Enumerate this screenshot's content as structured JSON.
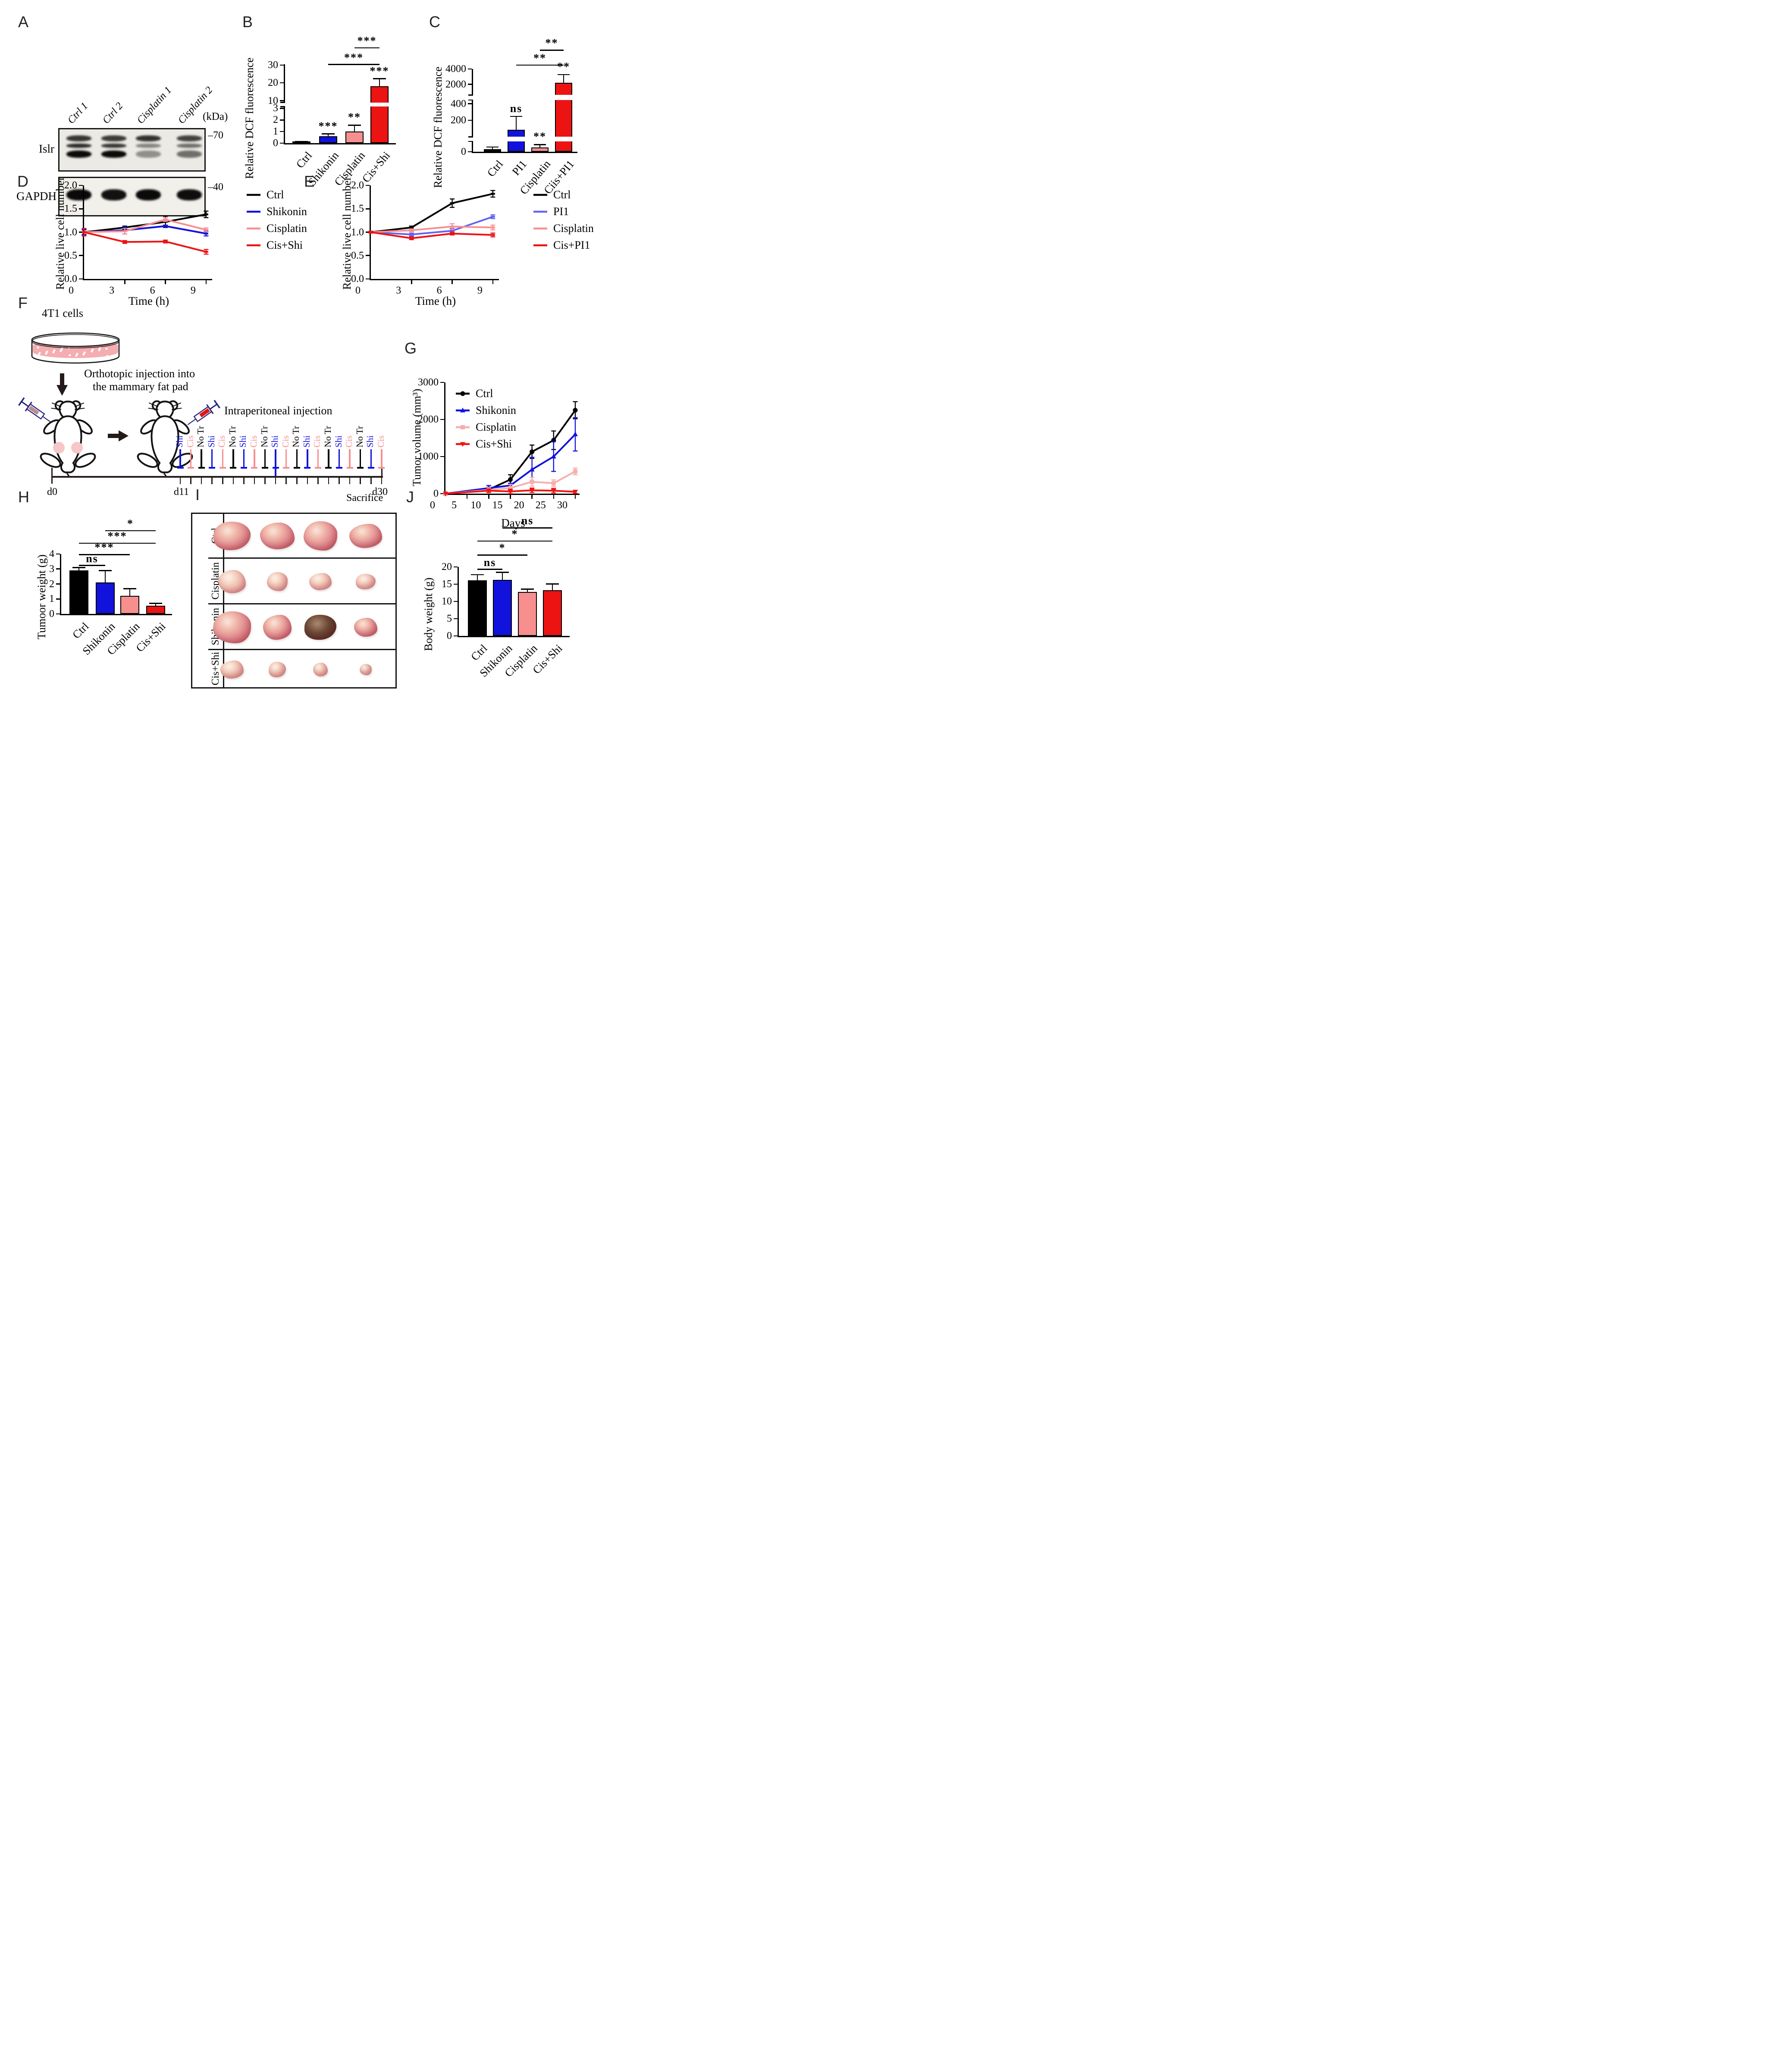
{
  "colors": {
    "black": "#000000",
    "blue": "#1212dd",
    "blue_light": "#6464f2",
    "pink": "#f78f8f",
    "pink_light": "#f6aeae",
    "red": "#ec1313",
    "dish_medium": "#f4adb0",
    "pad_pink": "#f7c6c6",
    "syringe1_fill": "#b98e90",
    "syringe2_fill": "#e41414"
  },
  "panelA": {
    "letter": "A",
    "lanes": [
      "Ctrl 1",
      "Ctrl 2",
      "Cisplatin 1",
      "Cisplatin 2"
    ],
    "kda_label": "(kDa)",
    "marker_labels": [
      "70",
      "40"
    ],
    "rows": [
      "Islr",
      "GAPDH"
    ],
    "islr_band1": [
      0.8,
      0.78,
      0.82,
      0.75
    ],
    "islr_band2": [
      0.85,
      0.8,
      0.45,
      0.55
    ],
    "islr_band3": [
      1.0,
      1.0,
      0.4,
      0.55
    ],
    "gapdh_band": [
      1.0,
      0.97,
      1.0,
      0.98
    ]
  },
  "panelB": {
    "letter": "B"
  },
  "panelC": {
    "letter": "C"
  },
  "panelD": {
    "letter": "D"
  },
  "panelE": {
    "letter": "E"
  },
  "panelF": {
    "letter": "F",
    "cells_label": "4T1 cells",
    "injection_line1": "Orthotopic injection into",
    "injection_line2": "the mammary fat pad",
    "ip_title": "Intraperitoneal injection",
    "schedule": [
      {
        "label": "Shi",
        "color": "blue"
      },
      {
        "label": "Cis",
        "color": "pink"
      },
      {
        "label": "No Tr",
        "color": "black"
      },
      {
        "label": "Shi",
        "color": "blue"
      },
      {
        "label": "Cis",
        "color": "pink"
      },
      {
        "label": "No Tr",
        "color": "black"
      },
      {
        "label": "Shi",
        "color": "blue"
      },
      {
        "label": "Cis",
        "color": "pink"
      },
      {
        "label": "No Tr",
        "color": "black"
      },
      {
        "label": "Shi",
        "color": "blue"
      },
      {
        "label": "Cis",
        "color": "pink"
      },
      {
        "label": "No Tr",
        "color": "black"
      },
      {
        "label": "Shi",
        "color": "blue"
      },
      {
        "label": "Cis",
        "color": "pink"
      },
      {
        "label": "No Tr",
        "color": "black"
      },
      {
        "label": "Shi",
        "color": "blue"
      },
      {
        "label": "Cis",
        "color": "pink"
      },
      {
        "label": "No Tr",
        "color": "black"
      },
      {
        "label": "Shi",
        "color": "blue"
      },
      {
        "label": "Cis",
        "color": "pink"
      }
    ],
    "long_tick_index": 9,
    "timeline": {
      "start_label": "d0",
      "mid_label": "d11",
      "end_label": "d30",
      "sacrifice_label": "Sacrifice"
    }
  },
  "panelG": {
    "letter": "G"
  },
  "panelH": {
    "letter": "H"
  },
  "panelI": {
    "letter": "I",
    "row_labels": [
      "Ctrl",
      "Cisplatin",
      "Shikonin",
      "Cis+Shi"
    ],
    "rows": [
      {
        "label": "Ctrl",
        "palette": "red",
        "dark_index": -1,
        "sizes": [
          [
            86,
            66
          ],
          [
            80,
            62
          ],
          [
            78,
            68
          ],
          [
            76,
            56
          ]
        ]
      },
      {
        "label": "Cisplatin",
        "palette": "pale",
        "dark_index": -1,
        "sizes": [
          [
            64,
            54
          ],
          [
            48,
            44
          ],
          [
            52,
            40
          ],
          [
            46,
            36
          ]
        ]
      },
      {
        "label": "Shikonin",
        "palette": "red",
        "dark_index": 2,
        "sizes": [
          [
            88,
            74
          ],
          [
            66,
            58
          ],
          [
            74,
            58
          ],
          [
            54,
            44
          ]
        ]
      },
      {
        "label": "Cis+Shi",
        "palette": "pale",
        "dark_index": -1,
        "sizes": [
          [
            54,
            42
          ],
          [
            40,
            36
          ],
          [
            34,
            32
          ],
          [
            28,
            26
          ]
        ]
      }
    ]
  },
  "panelJ": {
    "letter": "J"
  },
  "chart_data": [
    {
      "id": "B",
      "type": "bar",
      "ylabel": "Relative DCF fluorescence",
      "categories": [
        "Ctrl",
        "Shikonin",
        "Cisplatin",
        "Cis+Shi"
      ],
      "values": [
        0.05,
        0.6,
        1.0,
        18
      ],
      "errors": [
        0.04,
        0.15,
        0.5,
        4
      ],
      "bar_colors": [
        "black",
        "blue",
        "pink",
        "red"
      ],
      "yticks": [
        0,
        1,
        2,
        3,
        10,
        20,
        30
      ],
      "ymap": [
        [
          0,
          0
        ],
        [
          3,
          0.44
        ],
        [
          10,
          0.538
        ],
        [
          30,
          0.99
        ]
      ],
      "gaps": [
        [
          0.462,
          0.516
        ]
      ],
      "sig": [
        "",
        "***",
        "**",
        "***"
      ],
      "comparisons": [
        {
          "a": 1,
          "b": 3,
          "f": 0.99,
          "label": "***"
        },
        {
          "a": 2,
          "b": 3,
          "f": 1.2,
          "label": "***"
        }
      ],
      "note": "y axis break between 3 and 10"
    },
    {
      "id": "C",
      "type": "bar",
      "ylabel": "Relative DCF fluorescence",
      "categories": [
        "Ctrl",
        "PI1",
        "Cisplatin",
        "Ciis+PI1"
      ],
      "values": [
        15,
        140,
        25,
        2200
      ],
      "errors": [
        10,
        100,
        15,
        1000
      ],
      "bar_colors": [
        "black",
        "blue",
        "pink",
        "red"
      ],
      "yticks": [
        0,
        200,
        400,
        2000,
        4000
      ],
      "ymap": [
        [
          0,
          0
        ],
        [
          50,
          0.1
        ],
        [
          200,
          0.38
        ],
        [
          400,
          0.58
        ],
        [
          2000,
          0.815
        ],
        [
          4000,
          1.0
        ]
      ],
      "gaps": [
        [
          0.125,
          0.18
        ],
        [
          0.625,
          0.685
        ]
      ],
      "sig": [
        "",
        "ns",
        "**",
        "**"
      ],
      "comparisons": [
        {
          "a": 1,
          "b": 3,
          "f": 1.04,
          "label": "**"
        },
        {
          "a": 2,
          "b": 3,
          "f": 1.22,
          "label": "**"
        }
      ],
      "note": "y axis breaks between 0-200 and 400-2000"
    },
    {
      "id": "D",
      "type": "line",
      "ylabel": "Relative live cell number",
      "xlabel": "Time (h)",
      "x": [
        0,
        3,
        6,
        9
      ],
      "xticks": [
        0,
        3,
        6,
        9
      ],
      "xlim": [
        0,
        9.45
      ],
      "ylim": [
        0,
        2
      ],
      "yticks": [
        "0.0",
        "0.5",
        "1.0",
        "1.5",
        "2.0"
      ],
      "series": [
        {
          "name": "Ctrl",
          "color": "black",
          "marker": "dash",
          "values": [
            1.0,
            1.1,
            1.22,
            1.38
          ],
          "errors": [
            0.05,
            0.03,
            0.12,
            0.07
          ]
        },
        {
          "name": "Shikonin",
          "color": "blue",
          "marker": "dash",
          "values": [
            1.0,
            1.04,
            1.13,
            0.97
          ],
          "errors": [
            0.06,
            0.08,
            0.02,
            0.05
          ]
        },
        {
          "name": "Cisplatin",
          "color": "pink",
          "marker": "dash",
          "values": [
            1.0,
            1.02,
            1.27,
            1.05
          ],
          "errors": [
            0.08,
            0.06,
            0.04,
            0.04
          ]
        },
        {
          "name": "Cis+Shi",
          "color": "red",
          "marker": "dash",
          "values": [
            1.0,
            0.79,
            0.8,
            0.58
          ],
          "errors": [
            0.08,
            0.03,
            0.03,
            0.05
          ]
        }
      ],
      "legend_position": "right"
    },
    {
      "id": "E",
      "type": "line",
      "ylabel": "Relative live cell number",
      "xlabel": "Time (h)",
      "x": [
        0,
        3,
        6,
        9
      ],
      "xticks": [
        0,
        3,
        6,
        9
      ],
      "xlim": [
        0,
        9.45
      ],
      "ylim": [
        0,
        2
      ],
      "yticks": [
        "0.0",
        "0.5",
        "1.0",
        "1.5",
        "2.0"
      ],
      "series": [
        {
          "name": "Ctrl",
          "color": "black",
          "marker": "dash",
          "values": [
            1.0,
            1.1,
            1.62,
            1.82
          ],
          "errors": [
            0.02,
            0.03,
            0.09,
            0.07
          ]
        },
        {
          "name": "PI1",
          "color": "blue_light",
          "marker": "dash",
          "values": [
            1.0,
            0.95,
            1.03,
            1.33
          ],
          "errors": [
            0.02,
            0.03,
            0.05,
            0.04
          ]
        },
        {
          "name": "Cisplatin",
          "color": "pink",
          "marker": "dash",
          "values": [
            1.0,
            1.04,
            1.12,
            1.1
          ],
          "errors": [
            0.02,
            0.03,
            0.06,
            0.05
          ]
        },
        {
          "name": "Cis+PI1",
          "color": "red",
          "marker": "dash",
          "values": [
            1.0,
            0.87,
            0.97,
            0.94
          ],
          "errors": [
            0.02,
            0.03,
            0.03,
            0.04
          ]
        }
      ],
      "legend_position": "right"
    },
    {
      "id": "G",
      "type": "line",
      "ylabel": "Tumor volume (mm³)",
      "xlabel": "Days",
      "x": [
        0,
        10,
        15,
        20,
        25,
        30
      ],
      "xticks": [
        0,
        5,
        10,
        15,
        20,
        25,
        30
      ],
      "xlim": [
        0,
        31
      ],
      "ylim": [
        0,
        3000
      ],
      "yticks": [
        0,
        1000,
        2000,
        3000
      ],
      "series": [
        {
          "name": "Ctrl",
          "color": "black",
          "marker": "circle",
          "values": [
            0,
            110,
            380,
            1130,
            1440,
            2250
          ],
          "errors": [
            0,
            60,
            130,
            180,
            250,
            230
          ]
        },
        {
          "name": "Shikonin",
          "color": "blue",
          "marker": "triangle",
          "values": [
            0,
            150,
            220,
            650,
            1000,
            1600
          ],
          "errors": [
            0,
            70,
            60,
            330,
            400,
            450
          ]
        },
        {
          "name": "Cisplatin",
          "color": "pink_light",
          "marker": "square",
          "values": [
            0,
            100,
            150,
            320,
            280,
            600
          ],
          "errors": [
            0,
            60,
            100,
            120,
            90,
            90
          ]
        },
        {
          "name": "Cis+Shi",
          "color": "red",
          "marker": "triangle_down",
          "values": [
            0,
            80,
            60,
            90,
            80,
            50
          ],
          "errors": [
            0,
            50,
            60,
            60,
            60,
            40
          ]
        }
      ],
      "legend_position": "inside-top-left"
    },
    {
      "id": "H",
      "type": "bar",
      "ylabel": "Tumoor weight (g)",
      "categories": [
        "Ctrl",
        "Shikonin",
        "Cisplatin",
        "Cis+Shi"
      ],
      "values": [
        2.9,
        2.1,
        1.2,
        0.55
      ],
      "errors": [
        0.15,
        0.75,
        0.45,
        0.12
      ],
      "bar_colors": [
        "black",
        "blue",
        "pink",
        "red"
      ],
      "yticks": [
        0,
        1,
        2,
        3,
        4
      ],
      "ymap": [
        [
          0,
          0
        ],
        [
          4,
          1
        ]
      ],
      "gaps": [],
      "sig": [
        "",
        "",
        "",
        ""
      ],
      "comparisons": [
        {
          "a": 0,
          "b": 1,
          "f": 0.8,
          "label": "ns"
        },
        {
          "a": 0,
          "b": 2,
          "f": 0.98,
          "label": "***"
        },
        {
          "a": 0,
          "b": 3,
          "f": 1.17,
          "label": "***"
        },
        {
          "a": 1,
          "b": 3,
          "f": 1.38,
          "label": "*"
        }
      ]
    },
    {
      "id": "J",
      "type": "bar",
      "ylabel": "Body weight (g)",
      "categories": [
        "Ctrl",
        "Shikonin",
        "Cisplatin",
        "Cis+Shi"
      ],
      "values": [
        16.1,
        16.2,
        12.8,
        13.2
      ],
      "errors": [
        1.5,
        2.1,
        0.6,
        1.7
      ],
      "bar_colors": [
        "black",
        "blue",
        "pink",
        "red"
      ],
      "yticks": [
        0,
        5,
        10,
        15,
        20
      ],
      "ymap": [
        [
          0,
          0
        ],
        [
          20,
          1
        ]
      ],
      "gaps": [],
      "sig": [
        "",
        "",
        "",
        ""
      ],
      "comparisons": [
        {
          "a": 0,
          "b": 1,
          "f": 0.957,
          "label": "ns"
        },
        {
          "a": 0,
          "b": 2,
          "f": 1.165,
          "label": "*"
        },
        {
          "a": 0,
          "b": 3,
          "f": 1.368,
          "label": "*"
        },
        {
          "a": 1,
          "b": 3,
          "f": 1.558,
          "label": "ns"
        }
      ]
    }
  ]
}
